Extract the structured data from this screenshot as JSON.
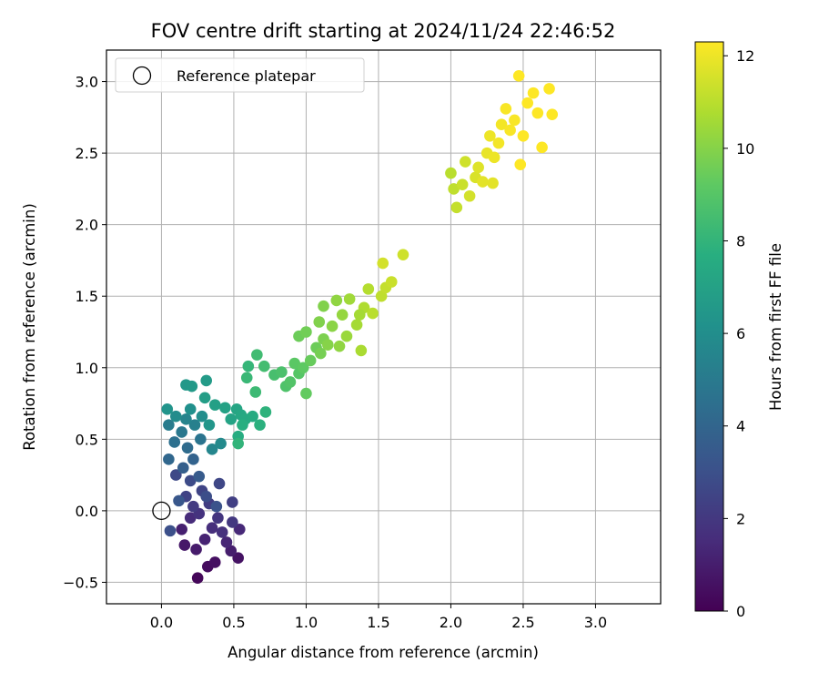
{
  "chart_data": {
    "type": "scatter",
    "title": "FOV centre drift starting at 2024/11/24 22:46:52",
    "xlabel": "Angular distance from reference (arcmin)",
    "ylabel": "Rotation from reference (arcmin)",
    "xlim": [
      -0.38,
      3.45
    ],
    "ylim": [
      -0.65,
      3.22
    ],
    "xticks": [
      "0.0",
      "0.5",
      "1.0",
      "1.5",
      "2.0",
      "2.5",
      "3.0"
    ],
    "xtick_values": [
      0,
      0.5,
      1.0,
      1.5,
      2.0,
      2.5,
      3.0
    ],
    "yticks": [
      "−0.5",
      "0.0",
      "0.5",
      "1.0",
      "1.5",
      "2.0",
      "2.5",
      "3.0"
    ],
    "ytick_values": [
      -0.5,
      0,
      0.5,
      1.0,
      1.5,
      2.0,
      2.5,
      3.0
    ],
    "grid": true,
    "legend": {
      "placement": "top-left",
      "entries": [
        "Reference platepar"
      ]
    },
    "reference_point": {
      "x": 0,
      "y": 0
    },
    "colorbar": {
      "label": "Hours from first FF file",
      "range": [
        0,
        12.3
      ],
      "ticks": [
        "0",
        "2",
        "4",
        "6",
        "8",
        "10",
        "12"
      ],
      "tick_values": [
        0,
        2,
        4,
        6,
        8,
        10,
        12
      ],
      "colormap": "viridis"
    },
    "points": [
      {
        "x": 0.25,
        "y": -0.47,
        "c": 0.2
      },
      {
        "x": 0.32,
        "y": -0.39,
        "c": 0.4
      },
      {
        "x": 0.37,
        "y": -0.36,
        "c": 0.5
      },
      {
        "x": 0.53,
        "y": -0.33,
        "c": 0.6
      },
      {
        "x": 0.16,
        "y": -0.24,
        "c": 0.8
      },
      {
        "x": 0.24,
        "y": -0.27,
        "c": 0.9
      },
      {
        "x": 0.48,
        "y": -0.28,
        "c": 1.0
      },
      {
        "x": 0.14,
        "y": -0.13,
        "c": 1.1
      },
      {
        "x": 0.3,
        "y": -0.2,
        "c": 1.2
      },
      {
        "x": 0.45,
        "y": -0.22,
        "c": 1.3
      },
      {
        "x": 0.54,
        "y": -0.13,
        "c": 1.4
      },
      {
        "x": 0.2,
        "y": -0.05,
        "c": 1.5
      },
      {
        "x": 0.35,
        "y": -0.12,
        "c": 1.6
      },
      {
        "x": 0.42,
        "y": -0.15,
        "c": 1.7
      },
      {
        "x": 0.26,
        "y": -0.02,
        "c": 1.8
      },
      {
        "x": 0.39,
        "y": -0.05,
        "c": 1.9
      },
      {
        "x": 0.49,
        "y": -0.08,
        "c": 2.0
      },
      {
        "x": 0.22,
        "y": 0.03,
        "c": 2.1
      },
      {
        "x": 0.33,
        "y": 0.05,
        "c": 2.2
      },
      {
        "x": 0.49,
        "y": 0.06,
        "c": 2.3
      },
      {
        "x": 0.17,
        "y": 0.1,
        "c": 2.4
      },
      {
        "x": 0.28,
        "y": 0.14,
        "c": 2.5
      },
      {
        "x": 0.4,
        "y": 0.19,
        "c": 2.6
      },
      {
        "x": 0.1,
        "y": 0.25,
        "c": 2.7
      },
      {
        "x": 0.2,
        "y": 0.21,
        "c": 2.8
      },
      {
        "x": 0.31,
        "y": 0.1,
        "c": 2.9
      },
      {
        "x": 0.06,
        "y": -0.14,
        "c": 3.0
      },
      {
        "x": 0.38,
        "y": 0.03,
        "c": 3.1
      },
      {
        "x": 0.12,
        "y": 0.07,
        "c": 3.3
      },
      {
        "x": 0.26,
        "y": 0.24,
        "c": 3.5
      },
      {
        "x": 0.15,
        "y": 0.3,
        "c": 3.7
      },
      {
        "x": 0.22,
        "y": 0.36,
        "c": 3.9
      },
      {
        "x": 0.05,
        "y": 0.36,
        "c": 4.1
      },
      {
        "x": 0.18,
        "y": 0.44,
        "c": 4.3
      },
      {
        "x": 0.09,
        "y": 0.48,
        "c": 4.5
      },
      {
        "x": 0.27,
        "y": 0.5,
        "c": 4.7
      },
      {
        "x": 0.14,
        "y": 0.55,
        "c": 4.9
      },
      {
        "x": 0.05,
        "y": 0.6,
        "c": 5.1
      },
      {
        "x": 0.23,
        "y": 0.6,
        "c": 5.3
      },
      {
        "x": 0.17,
        "y": 0.64,
        "c": 5.5
      },
      {
        "x": 0.35,
        "y": 0.43,
        "c": 5.6
      },
      {
        "x": 0.41,
        "y": 0.47,
        "c": 5.8
      },
      {
        "x": 0.1,
        "y": 0.66,
        "c": 5.9
      },
      {
        "x": 0.28,
        "y": 0.66,
        "c": 6.0
      },
      {
        "x": 0.2,
        "y": 0.71,
        "c": 6.1
      },
      {
        "x": 0.04,
        "y": 0.71,
        "c": 6.3
      },
      {
        "x": 0.33,
        "y": 0.6,
        "c": 6.4
      },
      {
        "x": 0.17,
        "y": 0.88,
        "c": 6.5
      },
      {
        "x": 0.21,
        "y": 0.87,
        "c": 6.6
      },
      {
        "x": 0.31,
        "y": 0.91,
        "c": 6.7
      },
      {
        "x": 0.3,
        "y": 0.79,
        "c": 6.8
      },
      {
        "x": 0.37,
        "y": 0.74,
        "c": 6.9
      },
      {
        "x": 0.44,
        "y": 0.72,
        "c": 7.0
      },
      {
        "x": 0.48,
        "y": 0.64,
        "c": 7.1
      },
      {
        "x": 0.52,
        "y": 0.71,
        "c": 7.2
      },
      {
        "x": 0.55,
        "y": 0.67,
        "c": 7.3
      },
      {
        "x": 0.58,
        "y": 0.64,
        "c": 7.4
      },
      {
        "x": 0.63,
        "y": 0.66,
        "c": 7.5
      },
      {
        "x": 0.53,
        "y": 0.52,
        "c": 7.6
      },
      {
        "x": 0.56,
        "y": 0.6,
        "c": 7.7
      },
      {
        "x": 0.68,
        "y": 0.6,
        "c": 7.8
      },
      {
        "x": 0.72,
        "y": 0.69,
        "c": 7.9
      },
      {
        "x": 0.53,
        "y": 0.47,
        "c": 8.0
      },
      {
        "x": 0.6,
        "y": 1.01,
        "c": 8.1
      },
      {
        "x": 0.59,
        "y": 0.93,
        "c": 8.2
      },
      {
        "x": 0.65,
        "y": 0.83,
        "c": 8.3
      },
      {
        "x": 0.66,
        "y": 1.09,
        "c": 8.4
      },
      {
        "x": 0.71,
        "y": 1.01,
        "c": 8.5
      },
      {
        "x": 0.78,
        "y": 0.95,
        "c": 8.6
      },
      {
        "x": 0.83,
        "y": 0.97,
        "c": 8.7
      },
      {
        "x": 0.86,
        "y": 0.87,
        "c": 8.8
      },
      {
        "x": 0.89,
        "y": 0.9,
        "c": 8.9
      },
      {
        "x": 0.95,
        "y": 0.96,
        "c": 9.0
      },
      {
        "x": 0.92,
        "y": 1.03,
        "c": 9.1
      },
      {
        "x": 0.98,
        "y": 1.0,
        "c": 9.2
      },
      {
        "x": 1.0,
        "y": 0.82,
        "c": 9.3
      },
      {
        "x": 1.03,
        "y": 1.05,
        "c": 9.4
      },
      {
        "x": 1.07,
        "y": 1.14,
        "c": 9.5
      },
      {
        "x": 0.95,
        "y": 1.22,
        "c": 9.5
      },
      {
        "x": 1.0,
        "y": 1.25,
        "c": 9.6
      },
      {
        "x": 1.1,
        "y": 1.1,
        "c": 9.7
      },
      {
        "x": 1.12,
        "y": 1.2,
        "c": 9.8
      },
      {
        "x": 1.09,
        "y": 1.32,
        "c": 9.9
      },
      {
        "x": 1.15,
        "y": 1.16,
        "c": 10.0
      },
      {
        "x": 1.18,
        "y": 1.29,
        "c": 10.1
      },
      {
        "x": 1.23,
        "y": 1.15,
        "c": 10.2
      },
      {
        "x": 1.25,
        "y": 1.37,
        "c": 10.3
      },
      {
        "x": 1.28,
        "y": 1.22,
        "c": 10.4
      },
      {
        "x": 1.3,
        "y": 1.48,
        "c": 10.5
      },
      {
        "x": 1.35,
        "y": 1.3,
        "c": 10.6
      },
      {
        "x": 1.38,
        "y": 1.12,
        "c": 10.7
      },
      {
        "x": 1.4,
        "y": 1.42,
        "c": 10.8
      },
      {
        "x": 1.43,
        "y": 1.55,
        "c": 10.9
      },
      {
        "x": 1.46,
        "y": 1.38,
        "c": 11.0
      },
      {
        "x": 1.52,
        "y": 1.5,
        "c": 11.1
      },
      {
        "x": 1.55,
        "y": 1.56,
        "c": 11.2
      },
      {
        "x": 1.59,
        "y": 1.6,
        "c": 11.3
      },
      {
        "x": 1.67,
        "y": 1.79,
        "c": 11.4
      },
      {
        "x": 1.53,
        "y": 1.73,
        "c": 11.5
      },
      {
        "x": 1.12,
        "y": 1.43,
        "c": 9.9
      },
      {
        "x": 1.21,
        "y": 1.47,
        "c": 10.2
      },
      {
        "x": 1.37,
        "y": 1.37,
        "c": 10.6
      },
      {
        "x": 2.0,
        "y": 2.36,
        "c": 11.0
      },
      {
        "x": 2.02,
        "y": 2.25,
        "c": 11.1
      },
      {
        "x": 2.04,
        "y": 2.12,
        "c": 11.2
      },
      {
        "x": 2.08,
        "y": 2.28,
        "c": 11.3
      },
      {
        "x": 2.1,
        "y": 2.44,
        "c": 11.4
      },
      {
        "x": 2.13,
        "y": 2.2,
        "c": 11.5
      },
      {
        "x": 2.17,
        "y": 2.33,
        "c": 11.6
      },
      {
        "x": 2.19,
        "y": 2.4,
        "c": 11.7
      },
      {
        "x": 2.22,
        "y": 2.3,
        "c": 11.8
      },
      {
        "x": 2.25,
        "y": 2.5,
        "c": 11.9
      },
      {
        "x": 2.27,
        "y": 2.62,
        "c": 12.0
      },
      {
        "x": 2.3,
        "y": 2.47,
        "c": 12.0
      },
      {
        "x": 2.33,
        "y": 2.57,
        "c": 12.1
      },
      {
        "x": 2.35,
        "y": 2.7,
        "c": 12.1
      },
      {
        "x": 2.38,
        "y": 2.81,
        "c": 12.2
      },
      {
        "x": 2.41,
        "y": 2.66,
        "c": 12.2
      },
      {
        "x": 2.44,
        "y": 2.73,
        "c": 12.2
      },
      {
        "x": 2.47,
        "y": 3.04,
        "c": 12.3
      },
      {
        "x": 2.5,
        "y": 2.62,
        "c": 12.3
      },
      {
        "x": 2.53,
        "y": 2.85,
        "c": 12.3
      },
      {
        "x": 2.57,
        "y": 2.92,
        "c": 12.3
      },
      {
        "x": 2.6,
        "y": 2.78,
        "c": 12.3
      },
      {
        "x": 2.63,
        "y": 2.54,
        "c": 12.3
      },
      {
        "x": 2.68,
        "y": 2.95,
        "c": 12.3
      },
      {
        "x": 2.7,
        "y": 2.77,
        "c": 12.3
      },
      {
        "x": 2.48,
        "y": 2.42,
        "c": 12.3
      },
      {
        "x": 2.29,
        "y": 2.29,
        "c": 11.8
      }
    ]
  }
}
